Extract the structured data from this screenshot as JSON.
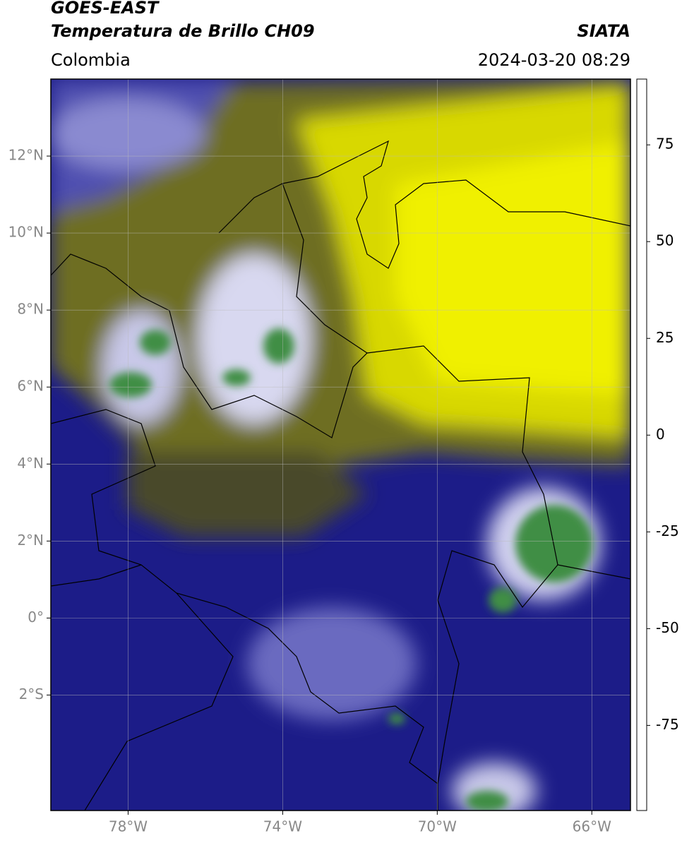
{
  "header": {
    "title": "GOES-EAST",
    "subtitle": "Temperatura de Brillo CH09",
    "source": "SIATA",
    "region": "Colombia",
    "datetime": "2024-03-20 08:29"
  },
  "map": {
    "xlim": [
      -80,
      -65
    ],
    "ylim": [
      -5,
      14
    ],
    "xticks": [
      {
        "value": -78,
        "label": "78°W"
      },
      {
        "value": -74,
        "label": "74°W"
      },
      {
        "value": -70,
        "label": "70°W"
      },
      {
        "value": -66,
        "label": "66°W"
      }
    ],
    "yticks": [
      {
        "value": 12,
        "label": "12°N"
      },
      {
        "value": 10,
        "label": "10°N"
      },
      {
        "value": 8,
        "label": "8°N"
      },
      {
        "value": 6,
        "label": "6°N"
      },
      {
        "value": 4,
        "label": "4°N"
      },
      {
        "value": 2,
        "label": "2°N"
      },
      {
        "value": 0,
        "label": "0°"
      },
      {
        "value": -2,
        "label": "2°S"
      }
    ],
    "grid": true
  },
  "colorbar": {
    "lim": [
      -97,
      92
    ],
    "ticks": [
      75,
      50,
      25,
      0,
      -25,
      -50,
      -75
    ],
    "stops": [
      {
        "value": -97,
        "color": "#ffffff"
      },
      {
        "value": -93,
        "color": "#ffffff"
      },
      {
        "value": -92,
        "color": "#00d8d8"
      },
      {
        "value": -80,
        "color": "#20a090"
      },
      {
        "value": -65,
        "color": "#3a8a3a"
      },
      {
        "value": -55,
        "color": "#a8c8a0"
      },
      {
        "value": -50,
        "color": "#ffffff"
      },
      {
        "value": -42,
        "color": "#9090d0"
      },
      {
        "value": -32,
        "color": "#1a1a8a"
      },
      {
        "value": -27,
        "color": "#101070"
      },
      {
        "value": -24,
        "color": "#404040"
      },
      {
        "value": -20,
        "color": "#7a7a20"
      },
      {
        "value": -12,
        "color": "#e0e000"
      },
      {
        "value": -6,
        "color": "#ff9000"
      },
      {
        "value": 0,
        "color": "#ff4000"
      },
      {
        "value": 8,
        "color": "#e00000"
      },
      {
        "value": 9,
        "color": "#000000"
      },
      {
        "value": 92,
        "color": "#000000"
      }
    ]
  }
}
